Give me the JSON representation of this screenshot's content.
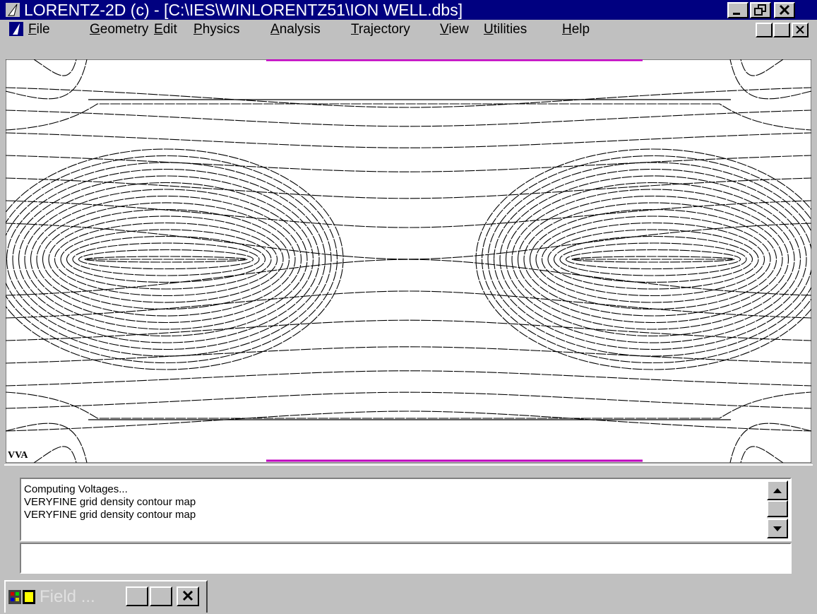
{
  "window": {
    "title": "LORENTZ-2D (c) - [C:\\IES\\WINLORENTZ51\\ION WELL.dbs]",
    "menu": [
      "File",
      "Geometry",
      "Edit",
      "Physics",
      "Analysis",
      "Trajectory",
      "View",
      "Utilities",
      "Help"
    ]
  },
  "plot": {
    "label": "VVA"
  },
  "log": {
    "lines": [
      "Computing Voltages...",
      "VERYFINE grid density contour map",
      "VERYFINE grid density contour map"
    ]
  },
  "minimized": {
    "title": "Field ..."
  }
}
